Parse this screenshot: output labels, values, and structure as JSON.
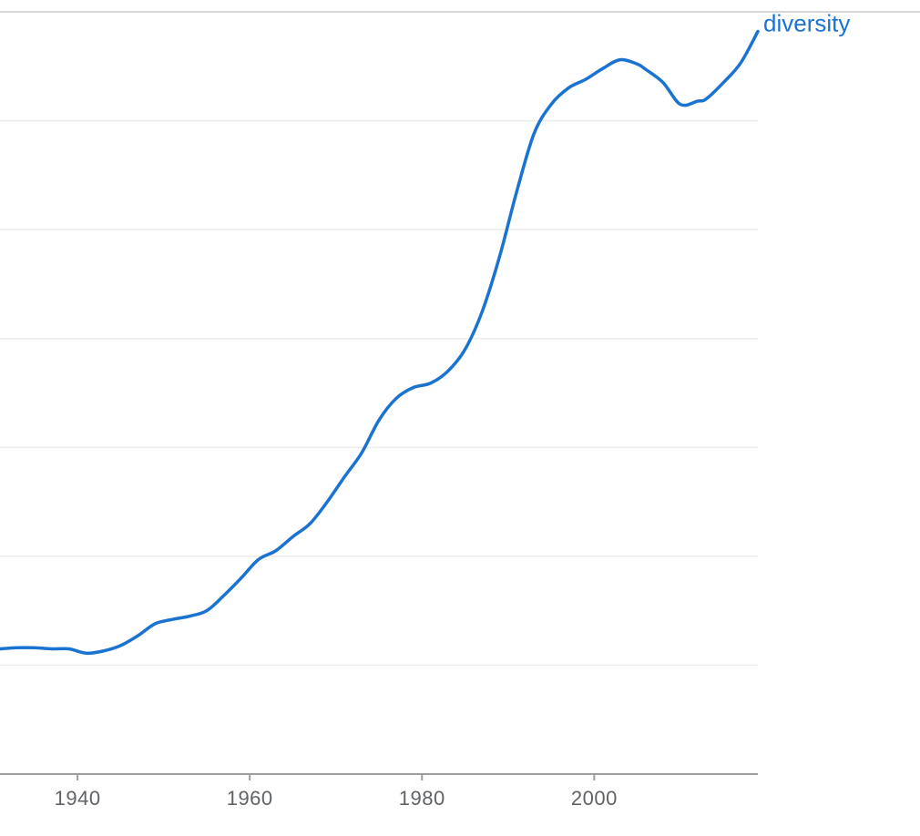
{
  "chart_data": {
    "type": "line",
    "title": "",
    "xlabel": "",
    "ylabel": "",
    "xlim": [
      1931,
      2019
    ],
    "ylim": [
      0,
      7
    ],
    "x_ticks": [
      1940,
      1960,
      1980,
      2000
    ],
    "y_gridlines": [
      1,
      2,
      3,
      4,
      5,
      6
    ],
    "grid": true,
    "series": [
      {
        "name": "diversity",
        "color": "#1a73d0",
        "x": [
          1931,
          1933,
          1935,
          1937,
          1939,
          1941,
          1943,
          1945,
          1947,
          1949,
          1951,
          1953,
          1955,
          1957,
          1959,
          1961,
          1963,
          1965,
          1967,
          1969,
          1971,
          1973,
          1975,
          1977,
          1979,
          1981,
          1983,
          1985,
          1987,
          1989,
          1991,
          1993,
          1995,
          1997,
          1999,
          2001,
          2003,
          2005,
          2006,
          2008,
          2010,
          2012,
          2013,
          2015,
          2017,
          2019
        ],
        "values": [
          1.15,
          1.16,
          1.16,
          1.15,
          1.15,
          1.11,
          1.13,
          1.18,
          1.27,
          1.38,
          1.42,
          1.45,
          1.5,
          1.64,
          1.8,
          1.97,
          2.05,
          2.18,
          2.3,
          2.5,
          2.73,
          2.95,
          3.25,
          3.45,
          3.55,
          3.59,
          3.7,
          3.9,
          4.25,
          4.75,
          5.35,
          5.88,
          6.15,
          6.3,
          6.38,
          6.48,
          6.56,
          6.52,
          6.47,
          6.35,
          6.15,
          6.18,
          6.2,
          6.35,
          6.53,
          6.82
        ]
      }
    ]
  }
}
